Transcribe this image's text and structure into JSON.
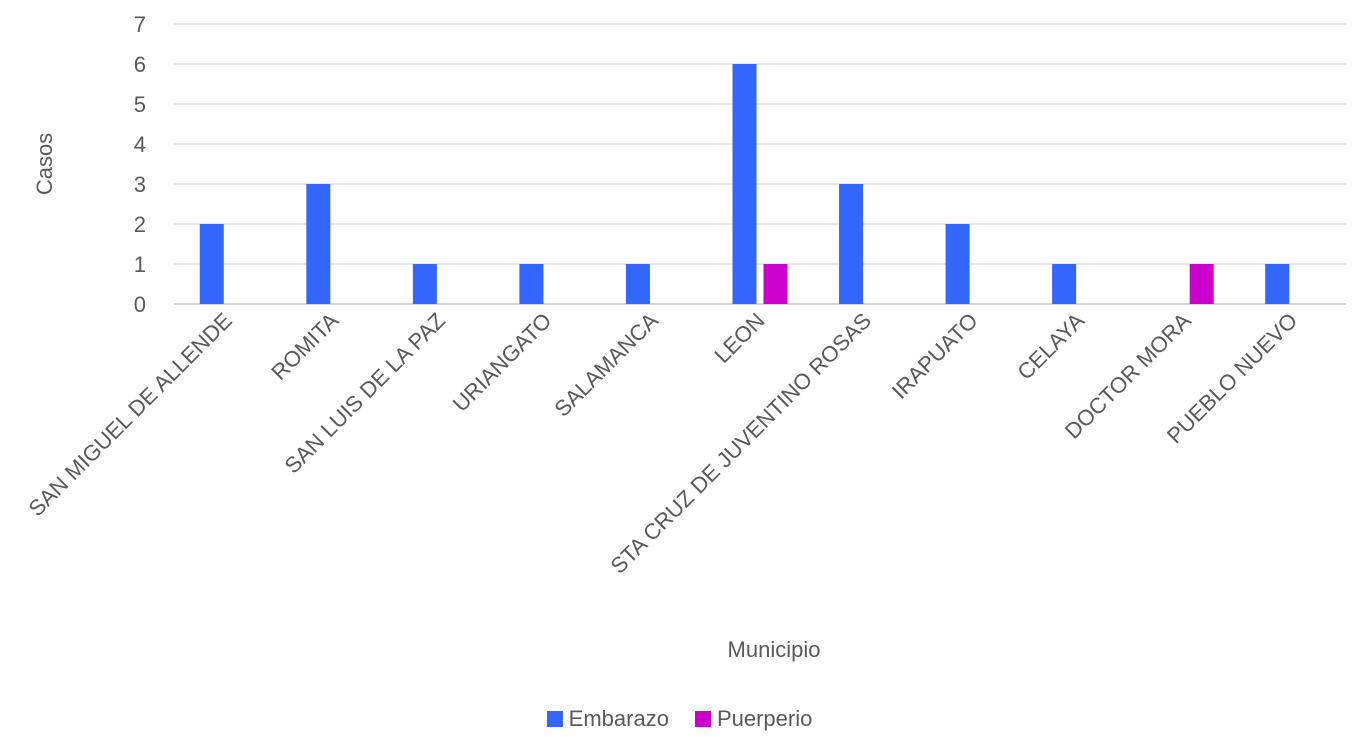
{
  "chart_data": {
    "type": "bar",
    "xlabel": "Municipio",
    "ylabel": "Casos",
    "ylim": [
      0,
      7
    ],
    "yticks": [
      0,
      1,
      2,
      3,
      4,
      5,
      6,
      7
    ],
    "grid": true,
    "legend_position": "bottom",
    "categories": [
      "SAN MIGUEL DE ALLENDE",
      "ROMITA",
      "SAN LUIS DE LA PAZ",
      "URIANGATO",
      "SALAMANCA",
      "LEON",
      "STA CRUZ DE JUVENTINO ROSAS",
      "IRAPUATO",
      "CELAYA",
      "DOCTOR MORA",
      "PUEBLO NUEVO"
    ],
    "series": [
      {
        "name": "Embarazo",
        "color": "#3366FF",
        "values": [
          2,
          3,
          1,
          1,
          1,
          6,
          3,
          2,
          1,
          0,
          1
        ]
      },
      {
        "name": "Puerperio",
        "color": "#CC00CC",
        "values": [
          0,
          0,
          0,
          0,
          0,
          1,
          0,
          0,
          0,
          1,
          0
        ]
      }
    ]
  }
}
